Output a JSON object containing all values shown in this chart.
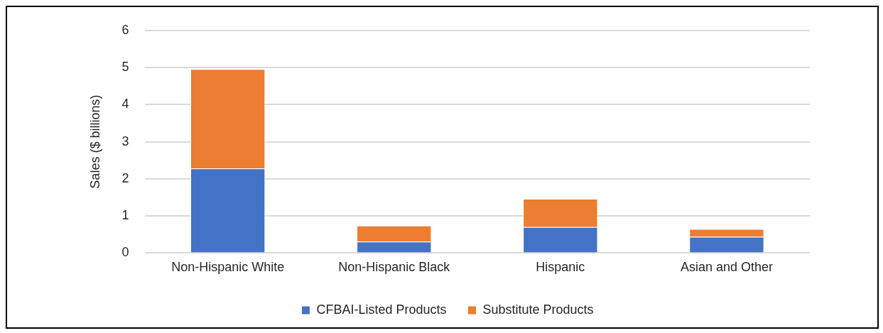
{
  "chart_data": {
    "type": "bar",
    "ylabel": "Sales ($ billions)",
    "categories": [
      "Non-Hispanic White",
      "Non-Hispanic Black",
      "Hispanic",
      "Asian and Other"
    ],
    "series": [
      {
        "name": "CFBAI-Listed Products",
        "color": "#4472c4",
        "values": [
          2.28,
          0.31,
          0.7,
          0.44
        ]
      },
      {
        "name": "Substitute Products",
        "color": "#ed7d31",
        "values": [
          2.68,
          0.43,
          0.76,
          0.21
        ]
      }
    ],
    "stacked": true,
    "ylim": [
      0,
      6
    ],
    "yticks": [
      0,
      1,
      2,
      3,
      4,
      5,
      6
    ],
    "grid": "y",
    "legend": "bottom"
  }
}
